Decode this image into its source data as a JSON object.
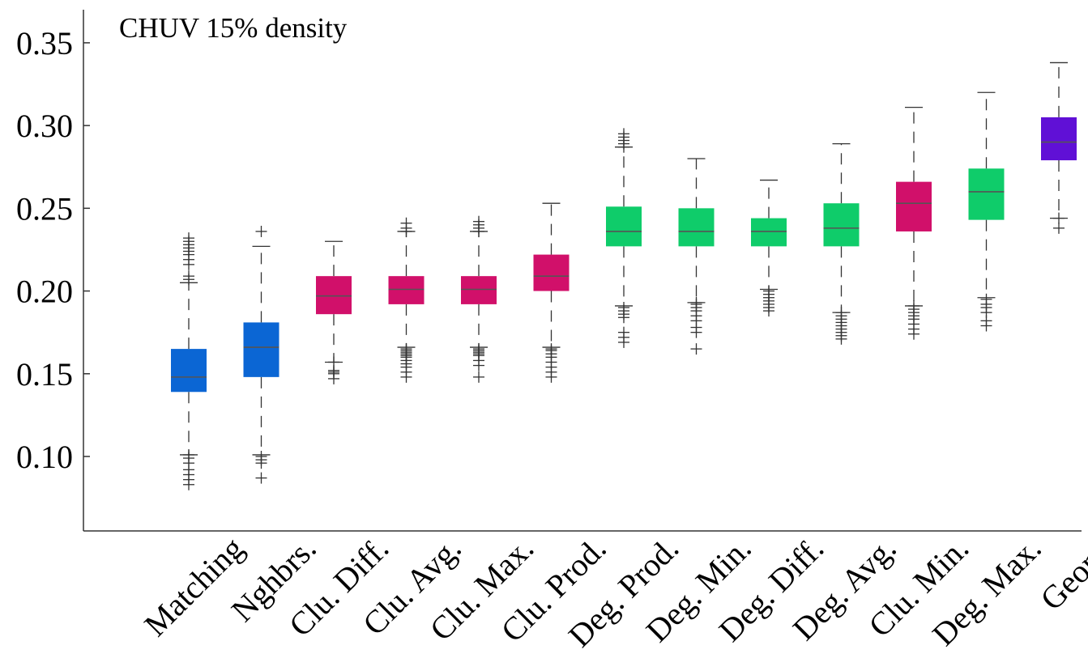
{
  "chart_data": {
    "type": "box",
    "title": "CHUV 15% density",
    "xlabel": "",
    "ylabel": "",
    "ylim": [
      0.055,
      0.37
    ],
    "yticks": [
      0.1,
      0.15,
      0.2,
      0.25,
      0.3,
      0.35
    ],
    "ytick_labels": [
      "0.10",
      "0.15",
      "0.20",
      "0.25",
      "0.30",
      "0.35"
    ],
    "grid": false,
    "categories": [
      "Matching",
      "Nghbrs.",
      "Clu. Diff.",
      "Clu. Avg.",
      "Clu. Max.",
      "Clu. Prod.",
      "Deg. Prod.",
      "Deg. Min.",
      "Deg. Diff.",
      "Deg. Avg.",
      "Clu. Min.",
      "Deg. Max.",
      "Geom."
    ],
    "boxes": [
      {
        "category": "Matching",
        "color": "#0b66d4",
        "q1": 0.139,
        "median": 0.148,
        "q3": 0.165,
        "whisker_low": 0.101,
        "whisker_high": 0.205,
        "outliers": [
          0.083,
          0.086,
          0.089,
          0.092,
          0.096,
          0.099,
          0.101,
          0.207,
          0.209,
          0.216,
          0.219,
          0.222,
          0.224,
          0.226,
          0.228,
          0.23,
          0.232
        ]
      },
      {
        "category": "Nghbrs.",
        "color": "#0b66d4",
        "q1": 0.148,
        "median": 0.166,
        "q3": 0.181,
        "whisker_low": 0.101,
        "whisker_high": 0.227,
        "outliers": [
          0.087,
          0.096,
          0.098,
          0.1,
          0.236
        ]
      },
      {
        "category": "Clu. Diff.",
        "color": "#d1106a",
        "q1": 0.186,
        "median": 0.197,
        "q3": 0.209,
        "whisker_low": 0.157,
        "whisker_high": 0.23,
        "outliers": [
          0.147,
          0.15,
          0.151,
          0.152,
          0.157
        ]
      },
      {
        "category": "Clu. Avg.",
        "color": "#d1106a",
        "q1": 0.192,
        "median": 0.201,
        "q3": 0.209,
        "whisker_low": 0.166,
        "whisker_high": 0.236,
        "outliers": [
          0.148,
          0.151,
          0.154,
          0.156,
          0.158,
          0.16,
          0.161,
          0.162,
          0.163,
          0.164,
          0.165,
          0.236,
          0.238,
          0.241
        ]
      },
      {
        "category": "Clu. Max.",
        "color": "#d1106a",
        "q1": 0.192,
        "median": 0.201,
        "q3": 0.209,
        "whisker_low": 0.166,
        "whisker_high": 0.236,
        "outliers": [
          0.148,
          0.155,
          0.158,
          0.161,
          0.162,
          0.163,
          0.164,
          0.165,
          0.236,
          0.238,
          0.24,
          0.242
        ]
      },
      {
        "category": "Clu. Prod.",
        "color": "#d1106a",
        "q1": 0.2,
        "median": 0.209,
        "q3": 0.222,
        "whisker_low": 0.166,
        "whisker_high": 0.253,
        "outliers": [
          0.148,
          0.151,
          0.154,
          0.157,
          0.16,
          0.162,
          0.164,
          0.165
        ]
      },
      {
        "category": "Deg. Prod.",
        "color": "#0fcc6a",
        "q1": 0.227,
        "median": 0.236,
        "q3": 0.251,
        "whisker_low": 0.191,
        "whisker_high": 0.287,
        "outliers": [
          0.169,
          0.172,
          0.175,
          0.184,
          0.186,
          0.188,
          0.19,
          0.287,
          0.289,
          0.291,
          0.293,
          0.295
        ]
      },
      {
        "category": "Deg. Min.",
        "color": "#0fcc6a",
        "q1": 0.227,
        "median": 0.236,
        "q3": 0.25,
        "whisker_low": 0.193,
        "whisker_high": 0.28,
        "outliers": [
          0.165,
          0.175,
          0.178,
          0.182,
          0.185,
          0.188,
          0.19,
          0.192,
          0.193
        ]
      },
      {
        "category": "Deg. Diff.",
        "color": "#0fcc6a",
        "q1": 0.227,
        "median": 0.236,
        "q3": 0.244,
        "whisker_low": 0.201,
        "whisker_high": 0.267,
        "outliers": [
          0.188,
          0.19,
          0.192,
          0.194,
          0.196,
          0.198,
          0.2
        ]
      },
      {
        "category": "Deg. Avg.",
        "color": "#0fcc6a",
        "q1": 0.227,
        "median": 0.238,
        "q3": 0.253,
        "whisker_low": 0.187,
        "whisker_high": 0.289,
        "outliers": [
          0.171,
          0.173,
          0.175,
          0.177,
          0.179,
          0.181,
          0.183,
          0.185,
          0.187
        ]
      },
      {
        "category": "Clu. Min.",
        "color": "#d1106a",
        "q1": 0.236,
        "median": 0.253,
        "q3": 0.266,
        "whisker_low": 0.191,
        "whisker_high": 0.311,
        "outliers": [
          0.174,
          0.177,
          0.18,
          0.183,
          0.185,
          0.187,
          0.189,
          0.191
        ]
      },
      {
        "category": "Deg. Max.",
        "color": "#0fcc6a",
        "q1": 0.243,
        "median": 0.26,
        "q3": 0.274,
        "whisker_low": 0.196,
        "whisker_high": 0.32,
        "outliers": [
          0.179,
          0.182,
          0.187,
          0.19,
          0.192,
          0.195
        ]
      },
      {
        "category": "Geom.",
        "color": "#6010d6",
        "q1": 0.279,
        "median": 0.29,
        "q3": 0.305,
        "whisker_low": 0.244,
        "whisker_high": 0.338,
        "outliers": [
          0.238,
          0.244
        ]
      }
    ]
  }
}
